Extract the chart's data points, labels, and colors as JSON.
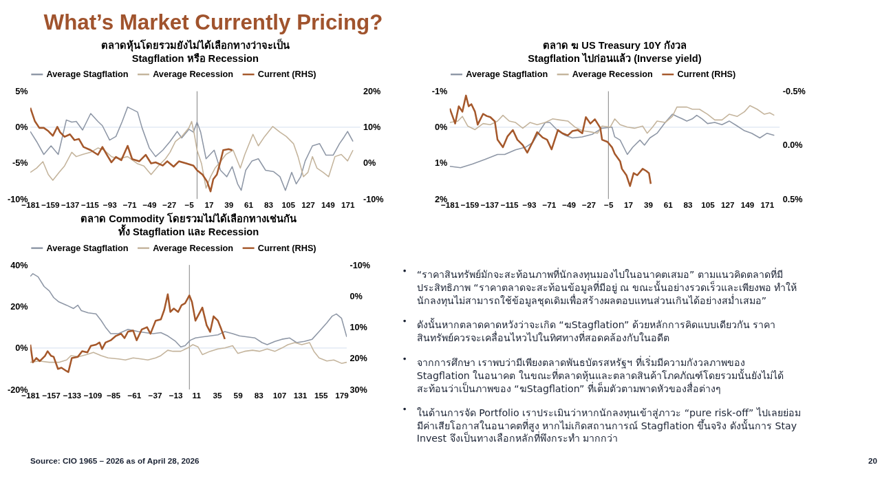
{
  "chart_data": [
    {
      "type": "other",
      "title": "What’s Market Currently Pricing?",
      "annotations": [
        "Source: CIO 1965 – 2026 as of April 28, 2026",
        "20"
      ]
    },
    {
      "type": "line",
      "title": "ตลาดหุ้นโดยรวมยังไม่ได้เลือกทางว่าจะเป็น\nStagflation หรือ Recession",
      "legend": "top",
      "xlim": [
        -181,
        185
      ],
      "xticks": [
        -181,
        -159,
        -137,
        -115,
        -93,
        -71,
        -49,
        -27,
        -5,
        17,
        39,
        61,
        83,
        105,
        127,
        149,
        171
      ],
      "ylim": [
        -10,
        5
      ],
      "yticks": [
        {
          "value": -10,
          "label": "-10%"
        },
        {
          "value": -5,
          "label": "-5%"
        },
        {
          "value": 0,
          "label": "0%"
        },
        {
          "value": 5,
          "label": "5%"
        }
      ],
      "y2lim": [
        -10,
        20
      ],
      "y2ticks": [
        {
          "value": -10,
          "label": "-10%"
        },
        {
          "value": 0,
          "label": "0%"
        },
        {
          "value": 10,
          "label": "10%"
        },
        {
          "value": 20,
          "label": "20%"
        }
      ],
      "ref_lines": [
        {
          "axis": "x",
          "value": 4,
          "color": "#7f7f7f"
        },
        {
          "axis": "y",
          "value": 0,
          "color": "#dce6f2"
        }
      ],
      "series": [
        {
          "name": "Average Stagflation",
          "color": "#8e97a6",
          "x": [
            -181,
            -174,
            -166,
            -158,
            -150,
            -141,
            -135,
            -130,
            -123,
            -114,
            -106,
            -101,
            -93,
            -86,
            -79,
            -73,
            -62,
            -57,
            -49,
            -42,
            -34,
            -26,
            -18,
            -13,
            -5,
            0,
            4,
            8,
            14,
            23,
            30,
            37,
            43,
            49,
            53,
            58,
            65,
            72,
            80,
            89,
            96,
            102,
            109,
            114,
            119,
            124,
            132,
            140,
            147,
            155,
            162,
            167,
            171,
            177
          ],
          "values": [
            -0.6,
            -2.0,
            -3.8,
            -2.6,
            -3.8,
            1.0,
            0.7,
            0.8,
            -0.4,
            1.9,
            0.8,
            0.2,
            -1.8,
            -1.3,
            0.8,
            2.8,
            2.1,
            -0.1,
            -2.9,
            -4.1,
            -3.2,
            -2.0,
            -0.6,
            -1.5,
            -0.3,
            -0.7,
            0.7,
            -0.7,
            -4.4,
            -3.2,
            -6.0,
            -6.9,
            -5.5,
            -7.9,
            -8.8,
            -6.0,
            -4.7,
            -4.4,
            -6.0,
            -6.2,
            -6.9,
            -8.8,
            -6.3,
            -7.9,
            -6.9,
            -4.7,
            -2.6,
            -2.3,
            -3.9,
            -3.9,
            -2.3,
            -1.4,
            -0.6,
            -2.0
          ]
        },
        {
          "name": "Average Recession",
          "color": "#c4b49c",
          "x": [
            -181,
            -174,
            -167,
            -161,
            -156,
            -149,
            -143,
            -135,
            -130,
            -123,
            -114,
            -106,
            -99,
            -91,
            -83,
            -73,
            -62,
            -55,
            -47,
            -39,
            -31,
            -26,
            -20,
            -13,
            -5,
            -2,
            1,
            4,
            9,
            14,
            19,
            24,
            30,
            36,
            44,
            52,
            57,
            66,
            72,
            79,
            88,
            96,
            103,
            111,
            116,
            122,
            127,
            132,
            137,
            144,
            150,
            157,
            164,
            171,
            177
          ],
          "values": [
            -6.3,
            -5.7,
            -4.8,
            -6.6,
            -7.4,
            -6.3,
            -5.4,
            -3.5,
            -4.1,
            -3.8,
            -3.5,
            -2.9,
            -3.2,
            -4.1,
            -4.4,
            -4.1,
            -5.1,
            -5.4,
            -6.6,
            -5.4,
            -4.4,
            -3.5,
            -2.0,
            -1.3,
            -0.1,
            0.8,
            -1.0,
            -3.2,
            -5.1,
            -8.5,
            -6.9,
            -5.7,
            -4.8,
            -3.8,
            -3.2,
            -5.7,
            -3.8,
            -1.0,
            -2.6,
            -1.3,
            0.1,
            -0.7,
            -1.3,
            -2.3,
            -4.1,
            -6.9,
            -6.3,
            -4.1,
            -5.7,
            -6.3,
            -6.9,
            -4.1,
            -3.8,
            -4.7,
            -3.2
          ]
        },
        {
          "name": "Current (RHS)",
          "color": "#a5582b",
          "axis": "y2",
          "x": [
            -181,
            -176,
            -171,
            -166,
            -161,
            -156,
            -151,
            -148,
            -143,
            -137,
            -132,
            -127,
            -122,
            -114,
            -106,
            -101,
            -96,
            -91,
            -86,
            -80,
            -73,
            -68,
            -60,
            -53,
            -47,
            -42,
            -34,
            -29,
            -22,
            -16,
            -8,
            0,
            4,
            10,
            15,
            19,
            22,
            26,
            30,
            33,
            39,
            43
          ],
          "values": [
            15.4,
            11.7,
            9.8,
            9.8,
            8.9,
            7.6,
            10.1,
            8.6,
            7.3,
            8.0,
            6.4,
            6.7,
            4.5,
            3.6,
            2.3,
            4.5,
            2.3,
            0.2,
            1.7,
            0.8,
            4.8,
            1.1,
            0.5,
            2.3,
            -0.1,
            0.2,
            -0.7,
            0.5,
            -1.0,
            0.5,
            -0.1,
            -0.7,
            -2.0,
            -3.2,
            -5.1,
            -7.9,
            -4.5,
            -3.2,
            0.5,
            3.6,
            3.9,
            3.6
          ]
        }
      ]
    },
    {
      "type": "line",
      "title": "ตลาด ฆ US Treasury 10Y กังวล\nStagflation ไปก่อนแล้ว (Inverse yield)",
      "legend": "top",
      "xlim": [
        -181,
        185
      ],
      "xticks": [
        -181,
        -159,
        -137,
        -115,
        -93,
        -71,
        -49,
        -27,
        -5,
        17,
        39,
        61,
        83,
        105,
        127,
        149,
        171
      ],
      "ylim": [
        2,
        -1
      ],
      "yticks": [
        {
          "value": -1,
          "label": "-1%"
        },
        {
          "value": 0,
          "label": "0%"
        },
        {
          "value": 1,
          "label": "1%"
        },
        {
          "value": 2,
          "label": "2%"
        }
      ],
      "y2lim": [
        0.5,
        -0.5
      ],
      "y2ticks": [
        {
          "value": -0.5,
          "label": "-0.5%"
        },
        {
          "value": 0,
          "label": "0.0%"
        },
        {
          "value": 0.5,
          "label": "0.5%"
        }
      ],
      "ref_lines": [
        {
          "axis": "x",
          "value": -5,
          "color": "#7f7f7f"
        },
        {
          "axis": "y",
          "value": 0,
          "color": "#dce6f2"
        }
      ],
      "series": [
        {
          "name": "Average Stagflation",
          "color": "#8e97a6",
          "x": [
            -181,
            -169,
            -156,
            -142,
            -128,
            -120,
            -108,
            -97,
            -89,
            -81,
            -75,
            -70,
            -61,
            -53,
            -45,
            -34,
            -23,
            -12,
            -1,
            2,
            8,
            16,
            22,
            30,
            35,
            41,
            49,
            58,
            66,
            71,
            77,
            82,
            88,
            93,
            99,
            105,
            113,
            121,
            129,
            138,
            146,
            154,
            163,
            171,
            179
          ],
          "values": [
            1.09,
            1.13,
            1.03,
            0.9,
            0.76,
            0.76,
            0.63,
            0.56,
            0.43,
            0.1,
            -0.13,
            -0.13,
            0.1,
            0.23,
            0.3,
            0.27,
            0.2,
            0.03,
            0.0,
            0.27,
            0.36,
            0.76,
            0.56,
            0.36,
            0.5,
            0.3,
            0.17,
            -0.13,
            -0.36,
            -0.3,
            -0.23,
            -0.17,
            -0.23,
            -0.33,
            -0.23,
            -0.1,
            -0.13,
            -0.07,
            -0.17,
            -0.03,
            0.1,
            0.17,
            0.3,
            0.17,
            0.23
          ]
        },
        {
          "name": "Average Recession",
          "color": "#c4b49c",
          "x": [
            -181,
            -172,
            -167,
            -161,
            -153,
            -144,
            -136,
            -128,
            -122,
            -115,
            -108,
            -100,
            -92,
            -84,
            -75,
            -67,
            -59,
            -50,
            -42,
            -34,
            -25,
            -17,
            -12,
            -3,
            2,
            8,
            16,
            24,
            33,
            38,
            44,
            49,
            58,
            66,
            71,
            77,
            82,
            88,
            96,
            105,
            113,
            121,
            129,
            138,
            146,
            152,
            160,
            168,
            174,
            179
          ],
          "values": [
            -0.13,
            -0.17,
            -0.3,
            -0.03,
            0.07,
            -0.1,
            -0.07,
            -0.17,
            -0.33,
            -0.17,
            -0.13,
            0.03,
            -0.13,
            -0.07,
            -0.13,
            -0.23,
            -0.2,
            -0.17,
            0.0,
            0.1,
            0.13,
            0.17,
            -0.03,
            0.0,
            -0.23,
            -0.07,
            0.0,
            0.03,
            -0.03,
            0.17,
            0.0,
            -0.17,
            -0.13,
            -0.3,
            -0.56,
            -0.56,
            -0.56,
            -0.5,
            -0.5,
            -0.36,
            -0.2,
            -0.2,
            -0.36,
            -0.3,
            -0.43,
            -0.6,
            -0.5,
            -0.36,
            -0.4,
            -0.33
          ]
        },
        {
          "name": "Current (RHS)",
          "color": "#a5582b",
          "axis": "y2",
          "x": [
            -181,
            -178,
            -175,
            -171,
            -167,
            -163,
            -160,
            -157,
            -153,
            -150,
            -144,
            -140,
            -136,
            -131,
            -128,
            -122,
            -117,
            -111,
            -106,
            -100,
            -95,
            -89,
            -84,
            -78,
            -73,
            -68,
            -61,
            -56,
            -50,
            -45,
            -39,
            -34,
            -30,
            -25,
            -20,
            -14,
            -12,
            -6,
            -1,
            2,
            8,
            10,
            15,
            19,
            23,
            27,
            33,
            37,
            40,
            42
          ],
          "values": [
            -0.34,
            -0.27,
            -0.2,
            -0.36,
            -0.31,
            -0.46,
            -0.36,
            -0.38,
            -0.31,
            -0.19,
            -0.29,
            -0.27,
            -0.26,
            -0.22,
            -0.05,
            0.02,
            -0.08,
            -0.14,
            -0.05,
            0.0,
            0.07,
            -0.03,
            -0.12,
            -0.07,
            -0.05,
            0.04,
            -0.14,
            -0.11,
            -0.09,
            -0.13,
            -0.14,
            -0.11,
            -0.26,
            -0.2,
            -0.24,
            -0.16,
            -0.05,
            -0.03,
            0.02,
            0.08,
            0.15,
            0.22,
            0.28,
            0.38,
            0.26,
            0.28,
            0.22,
            0.24,
            0.26,
            0.36
          ]
        }
      ]
    },
    {
      "type": "line",
      "title": "ตลาด Commodity โดยรวมไม่ได้เลือกทางเช่นกัน\nทั้ง Stagflation และ Recession",
      "legend": "top",
      "xlim": [
        -181,
        185
      ],
      "xticks": [
        -181,
        -157,
        -133,
        -109,
        -85,
        -61,
        -37,
        -13,
        11,
        35,
        59,
        83,
        107,
        131,
        155,
        179
      ],
      "ylim": [
        -20,
        40
      ],
      "yticks": [
        {
          "value": -20,
          "label": "-20%"
        },
        {
          "value": 0,
          "label": "0%"
        },
        {
          "value": 20,
          "label": "20%"
        },
        {
          "value": 40,
          "label": "40%"
        }
      ],
      "y2lim": [
        30,
        -10
      ],
      "y2ticks": [
        {
          "value": -10,
          "label": "-10%"
        },
        {
          "value": 0,
          "label": "0%"
        },
        {
          "value": 10,
          "label": "10%"
        },
        {
          "value": 20,
          "label": "20%"
        },
        {
          "value": 30,
          "label": "30%"
        }
      ],
      "ref_lines": [
        {
          "axis": "x",
          "value": 3,
          "color": "#7f7f7f"
        },
        {
          "axis": "y",
          "value": 0,
          "color": "#dce6f2"
        }
      ],
      "series": [
        {
          "name": "Average Stagflation",
          "color": "#8e97a6",
          "x": [
            -181,
            -178,
            -172,
            -165,
            -159,
            -154,
            -148,
            -139,
            -131,
            -126,
            -122,
            -114,
            -105,
            -99,
            -94,
            -88,
            -79,
            -68,
            -56,
            -48,
            -39,
            -30,
            -22,
            -13,
            -7,
            -2,
            4,
            10,
            18,
            27,
            36,
            44,
            53,
            61,
            70,
            79,
            87,
            93,
            102,
            110,
            119,
            127,
            136,
            145,
            153,
            162,
            168,
            173,
            179,
            185
          ],
          "values": [
            34.5,
            35.8,
            34.3,
            29.6,
            27.5,
            24.3,
            22.2,
            20.6,
            19.0,
            20.6,
            18.0,
            16.9,
            16.4,
            13.2,
            10.0,
            6.9,
            6.9,
            9.0,
            7.9,
            7.4,
            6.9,
            7.4,
            5.8,
            3.2,
            0.5,
            1.1,
            3.7,
            4.8,
            5.3,
            5.8,
            6.3,
            7.9,
            6.9,
            5.8,
            5.3,
            4.8,
            2.6,
            1.6,
            3.2,
            4.2,
            4.8,
            2.6,
            3.2,
            4.2,
            7.9,
            12.1,
            15.3,
            16.4,
            14.3,
            5.3
          ]
        },
        {
          "name": "Average Recession",
          "color": "#c4b49c",
          "x": [
            -181,
            -171,
            -159,
            -148,
            -139,
            -134,
            -125,
            -116,
            -108,
            -99,
            -91,
            -79,
            -71,
            -62,
            -53,
            -45,
            -36,
            -30,
            -22,
            -16,
            -7,
            1,
            7,
            13,
            18,
            27,
            36,
            44,
            53,
            59,
            67,
            76,
            84,
            93,
            102,
            110,
            117,
            125,
            133,
            142,
            147,
            153,
            162,
            170,
            179,
            185
          ],
          "values": [
            -6.9,
            -6.3,
            -6.9,
            -6.9,
            -5.8,
            -3.7,
            -4.2,
            -3.2,
            -2.1,
            -3.7,
            -4.8,
            -5.3,
            -5.8,
            -4.8,
            -5.3,
            -5.8,
            -4.8,
            -3.7,
            -1.1,
            -1.6,
            -1.6,
            0.0,
            1.6,
            0.5,
            -3.2,
            -1.6,
            -0.5,
            0.0,
            1.1,
            -2.6,
            -1.6,
            -1.1,
            -1.6,
            -0.5,
            -1.6,
            0.0,
            1.6,
            2.6,
            1.6,
            2.6,
            -1.6,
            -4.8,
            -6.3,
            -5.8,
            -7.4,
            -6.9
          ]
        },
        {
          "name": "Current (RHS)",
          "color": "#a5582b",
          "axis": "y2",
          "x": [
            -181,
            -178,
            -174,
            -170,
            -164,
            -161,
            -157,
            -154,
            -149,
            -145,
            -139,
            -137,
            -133,
            -126,
            -121,
            -115,
            -111,
            -105,
            -101,
            -98,
            -94,
            -88,
            -82,
            -76,
            -72,
            -68,
            -62,
            -58,
            -52,
            -46,
            -42,
            -36,
            -30,
            -26,
            -22,
            -19,
            -15,
            -10,
            -6,
            -2,
            3,
            6,
            10,
            14,
            18,
            23,
            27,
            31,
            36,
            40,
            44
          ],
          "values": [
            15.6,
            21.3,
            19.9,
            20.9,
            19.2,
            17.7,
            19.2,
            19.5,
            23.4,
            23.0,
            24.1,
            24.4,
            19.9,
            19.5,
            17.7,
            18.1,
            16.0,
            15.6,
            14.9,
            17.0,
            14.9,
            14.2,
            12.8,
            12.1,
            13.5,
            11.4,
            11.1,
            14.2,
            10.7,
            10.0,
            12.1,
            7.9,
            7.5,
            4.4,
            -0.6,
            5.1,
            4.0,
            5.1,
            2.9,
            2.3,
            -0.2,
            1.9,
            7.9,
            5.8,
            3.7,
            9.4,
            11.5,
            6.5,
            7.9,
            10.7,
            13.8
          ]
        }
      ]
    },
    {
      "type": "other",
      "annotations": [
        "“ราคาสินทรัพย์มักจะสะท้อนภาพที่นักลงทุนมองไปในอนาคตเสมอ” ตามแนวคิดตลาดที่มี\nประสิทธิภาพ “ราคาตลาดจะสะท้อนข้อมูลที่มีอยู่ ณ ขณะนั้นอย่างรวดเร็วและเพียงพอ ทำให้\nนักลงทุนไม่สามารถใช้ข้อมูลชุดเดิมเพื่อสร้างผลตอบแทนส่วนเกินได้อย่างสม่ำเสมอ”",
        "ดังนั้นหากตลาดคาดหวังว่าจะเกิด “ฆStagflation” ด้วยหลักการคิดแบบเดียวกัน ราคา\nสินทรัพย์ควรจะเคลื่อนไหวไปในทิศทางที่สอดคล้องกับในอดีต",
        "จากการศึกษา เราพบว่ามีเพียงตลาดพันธบัตรสหรัฐฯ ที่เริ่มมีความกังวลภาพของ\nStagflation ในอนาคต ในขณะที่ตลาดหุ้นและตลาดสินค้าโภคภัณฑ์โดยรวมนั้นยังไม่ได้\nสะท้อนว่าเป็นภาพของ “ฆStagflation” ที่เต็มตัวตามพาดหัวของสื่อต่างๆ",
        "ในด้านการจัด Portfolio เราประเมินว่าหากนักลงทุนเข้าสู่ภาวะ “pure risk-off” ไปเลยย่อม\nมีค่าเสียโอกาสในอนาคตที่สูง หากไม่เกิดสถานการณ์ Stagflation ขึ้นจริง ดังนั้นการ Stay\nInvest จึงเป็นทางเลือกหลักที่พึงกระทำ มากกว่า"
      ]
    }
  ]
}
